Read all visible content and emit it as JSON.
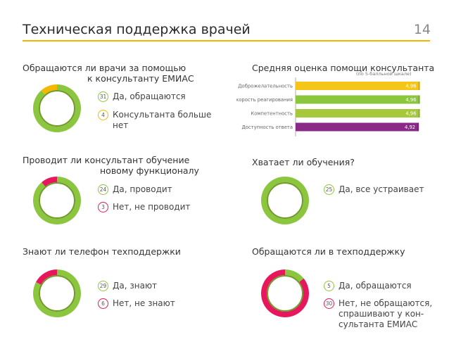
{
  "header": {
    "title": "Техническая поддержка врачей",
    "page_number": "14"
  },
  "colors": {
    "green": "#8cc63f",
    "yellow": "#f5b800",
    "red": "#e8175d",
    "purple": "#8a2a86",
    "accent_line": "#f4b400"
  },
  "chart_data": [
    {
      "type": "pie",
      "title_line1": "Обращаются ли врачи за помощью",
      "title_line2": "к консультанту ЕМИАС",
      "slices": [
        {
          "label": "Да, обращаются",
          "value": 31,
          "color": "#8cc63f"
        },
        {
          "label": "Консультанта больше\nнет",
          "value": 4,
          "color": "#f5b800"
        }
      ]
    },
    {
      "type": "bar",
      "title": "Средняя оценка помощи консультанта",
      "subtitle": "(по 5-балльной шкале)",
      "categories": [
        "Доброжелательность",
        "Скорость реагирования",
        "Компетентность",
        "Доступность ответа"
      ],
      "values": [
        4.96,
        4.96,
        4.96,
        4.92
      ],
      "value_labels": [
        "4,96",
        "4,96",
        "4,96",
        "4,92"
      ],
      "colors": [
        "#f5c518",
        "#8cc63f",
        "#a7c83a",
        "#8a2a86"
      ],
      "xlim": [
        0,
        5
      ]
    },
    {
      "type": "pie",
      "title_line1": "Проводит ли консультант обучение",
      "title_line2": "новому функционалу",
      "slices": [
        {
          "label": "Да, проводит",
          "value": 24,
          "color": "#8cc63f"
        },
        {
          "label": "Нет, не проводит",
          "value": 3,
          "color": "#e8175d"
        }
      ]
    },
    {
      "type": "pie",
      "title_line1": "Хватает ли обучения?",
      "title_line2": "",
      "slices": [
        {
          "label": "Да, все устраивает",
          "value": 25,
          "color": "#8cc63f"
        }
      ]
    },
    {
      "type": "pie",
      "title_line1": "Знают ли телефон техподдержки",
      "title_line2": "",
      "slices": [
        {
          "label": "Да, знают",
          "value": 29,
          "color": "#8cc63f"
        },
        {
          "label": "Нет, не знают",
          "value": 6,
          "color": "#e8175d"
        }
      ]
    },
    {
      "type": "pie",
      "title_line1": "Обращаются ли в техподдержку",
      "title_line2": "",
      "slices": [
        {
          "label": "Да, обращаются",
          "value": 5,
          "color": "#8cc63f"
        },
        {
          "label": "Нет, не обращаются,\nспрашивают у кон-\nсультанта ЕМИАС",
          "value": 30,
          "color": "#e8175d"
        }
      ]
    }
  ]
}
